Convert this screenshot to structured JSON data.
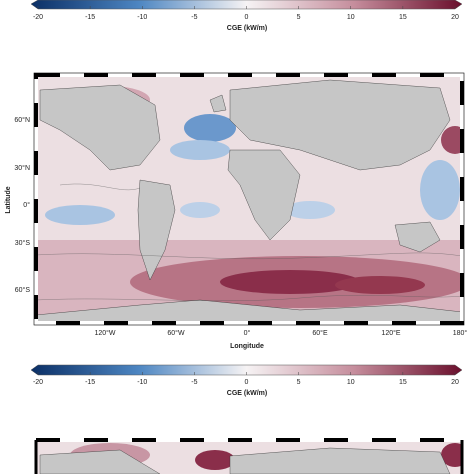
{
  "colorbar_top": {
    "ticks": [
      -20,
      -15,
      -10,
      -5,
      0,
      5,
      10,
      15,
      20
    ],
    "label": "CGE (kW/m)"
  },
  "map_top": {
    "lat_labels": [
      "60°N",
      "30°N",
      "0°",
      "30°S",
      "60°S"
    ],
    "lat_title": "Latitude",
    "lon_labels": [
      "120°W",
      "60°W",
      "0°",
      "60°E",
      "120°E",
      "180°"
    ],
    "lon_title": "Longitude"
  },
  "colorbar_bottom": {
    "ticks": [
      -20,
      -15,
      -10,
      -5,
      0,
      5,
      10,
      15,
      20
    ],
    "label": "CGE (kW/m)"
  }
}
